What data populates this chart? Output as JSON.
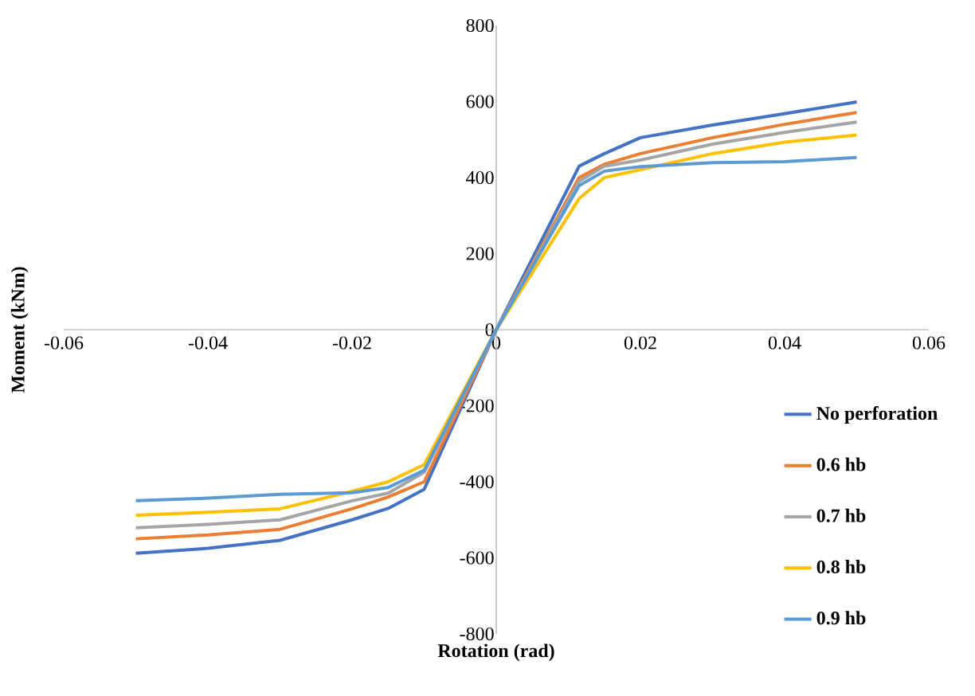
{
  "chart_data": {
    "type": "line",
    "xlabel": "Rotation (rad)",
    "ylabel": "Moment (kNm)",
    "x": [
      -0.05,
      -0.04,
      -0.03,
      -0.02,
      -0.015,
      -0.01,
      0,
      0.0115,
      0.015,
      0.02,
      0.03,
      0.04,
      0.05
    ],
    "series": [
      {
        "name": "No perforation",
        "color": "#4472c4",
        "values": [
          -588,
          -575,
          -554,
          -500,
          -470,
          -420,
          0,
          430,
          463,
          505,
          538,
          568,
          599
        ]
      },
      {
        "name": "0.6 hb",
        "color": "#ed7d31",
        "values": [
          -550,
          -540,
          -525,
          -471,
          -440,
          -400,
          0,
          400,
          435,
          463,
          505,
          540,
          571
        ]
      },
      {
        "name": "0.7 hb",
        "color": "#a5a5a5",
        "values": [
          -521,
          -512,
          -500,
          -450,
          -430,
          -375,
          0,
          390,
          430,
          446,
          488,
          519,
          546
        ]
      },
      {
        "name": "0.8 hb",
        "color": "#ffc000",
        "values": [
          -488,
          -480,
          -471,
          -425,
          -400,
          -355,
          0,
          345,
          400,
          421,
          463,
          493,
          512
        ]
      },
      {
        "name": "0.9 hb",
        "color": "#5b9bd5",
        "values": [
          -450,
          -443,
          -433,
          -429,
          -415,
          -370,
          0,
          379,
          417,
          429,
          439,
          442,
          453
        ]
      }
    ],
    "xlim": [
      -0.06,
      0.06
    ],
    "xticks": [
      -0.06,
      -0.04,
      -0.02,
      0,
      0.02,
      0.04,
      0.06
    ],
    "ylim": [
      -800,
      800
    ],
    "yticks": [
      -800,
      -600,
      -400,
      -200,
      0,
      200,
      400,
      600,
      800
    ],
    "legend": "bottom right",
    "grid": false,
    "marker": "none",
    "line_style": "solid"
  }
}
